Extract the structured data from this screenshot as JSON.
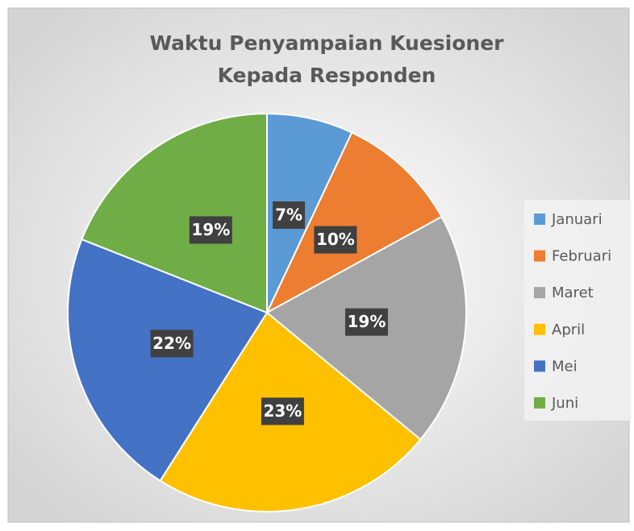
{
  "chart_data": {
    "type": "pie",
    "title": [
      "Waktu Penyampaian Kuesioner",
      "Kepada Responden"
    ],
    "categories": [
      "Januari",
      "Februari",
      "Maret",
      "April",
      "Mei",
      "Juni"
    ],
    "values": [
      7,
      10,
      19,
      23,
      22,
      19
    ],
    "value_labels": [
      "7%",
      "10%",
      "19%",
      "23%",
      "22%",
      "19%"
    ],
    "colors": [
      "#5b9bd5",
      "#ed7d31",
      "#a5a5a5",
      "#ffc000",
      "#4472c4",
      "#70ad47"
    ],
    "legend": "right"
  }
}
